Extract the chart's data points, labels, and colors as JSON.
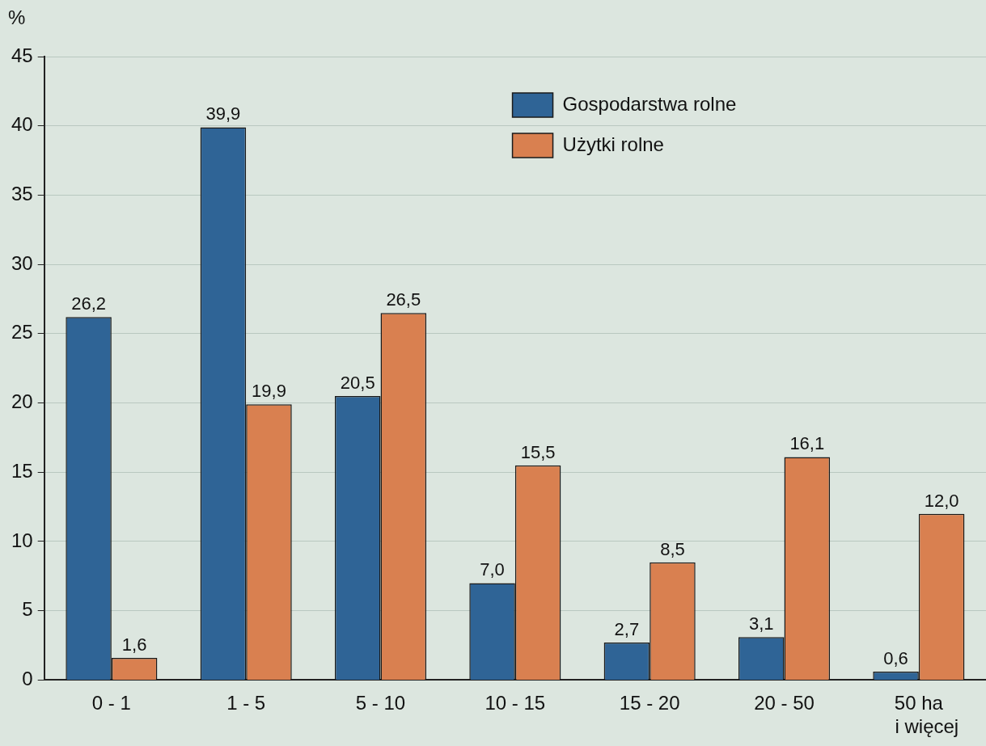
{
  "chart_data": {
    "type": "bar",
    "ylabel": "%",
    "categories": [
      "0 - 1",
      "1 - 5",
      "5 - 10",
      "10 - 15",
      "15 - 20",
      "20 - 50",
      "50 ha i więcej"
    ],
    "series": [
      {
        "name": "Gospodarstwa rolne",
        "color": "#2f6496",
        "values": [
          26.2,
          39.9,
          20.5,
          7.0,
          2.7,
          3.1,
          0.6
        ],
        "value_labels": [
          "26,2",
          "39,9",
          "20,5",
          "7,0",
          "2,7",
          "3,1",
          "0,6"
        ]
      },
      {
        "name": "Użytki rolne",
        "color": "#d98050",
        "values": [
          1.6,
          19.9,
          26.5,
          15.5,
          8.5,
          16.1,
          12.0
        ],
        "value_labels": [
          "1,6",
          "19,9",
          "26,5",
          "15,5",
          "8,5",
          "16,1",
          "12,0"
        ]
      }
    ],
    "ylim": [
      0,
      45
    ],
    "yticks": [
      0,
      5,
      10,
      15,
      20,
      25,
      30,
      35,
      40,
      45
    ],
    "grid": "y",
    "legend": "top right"
  }
}
